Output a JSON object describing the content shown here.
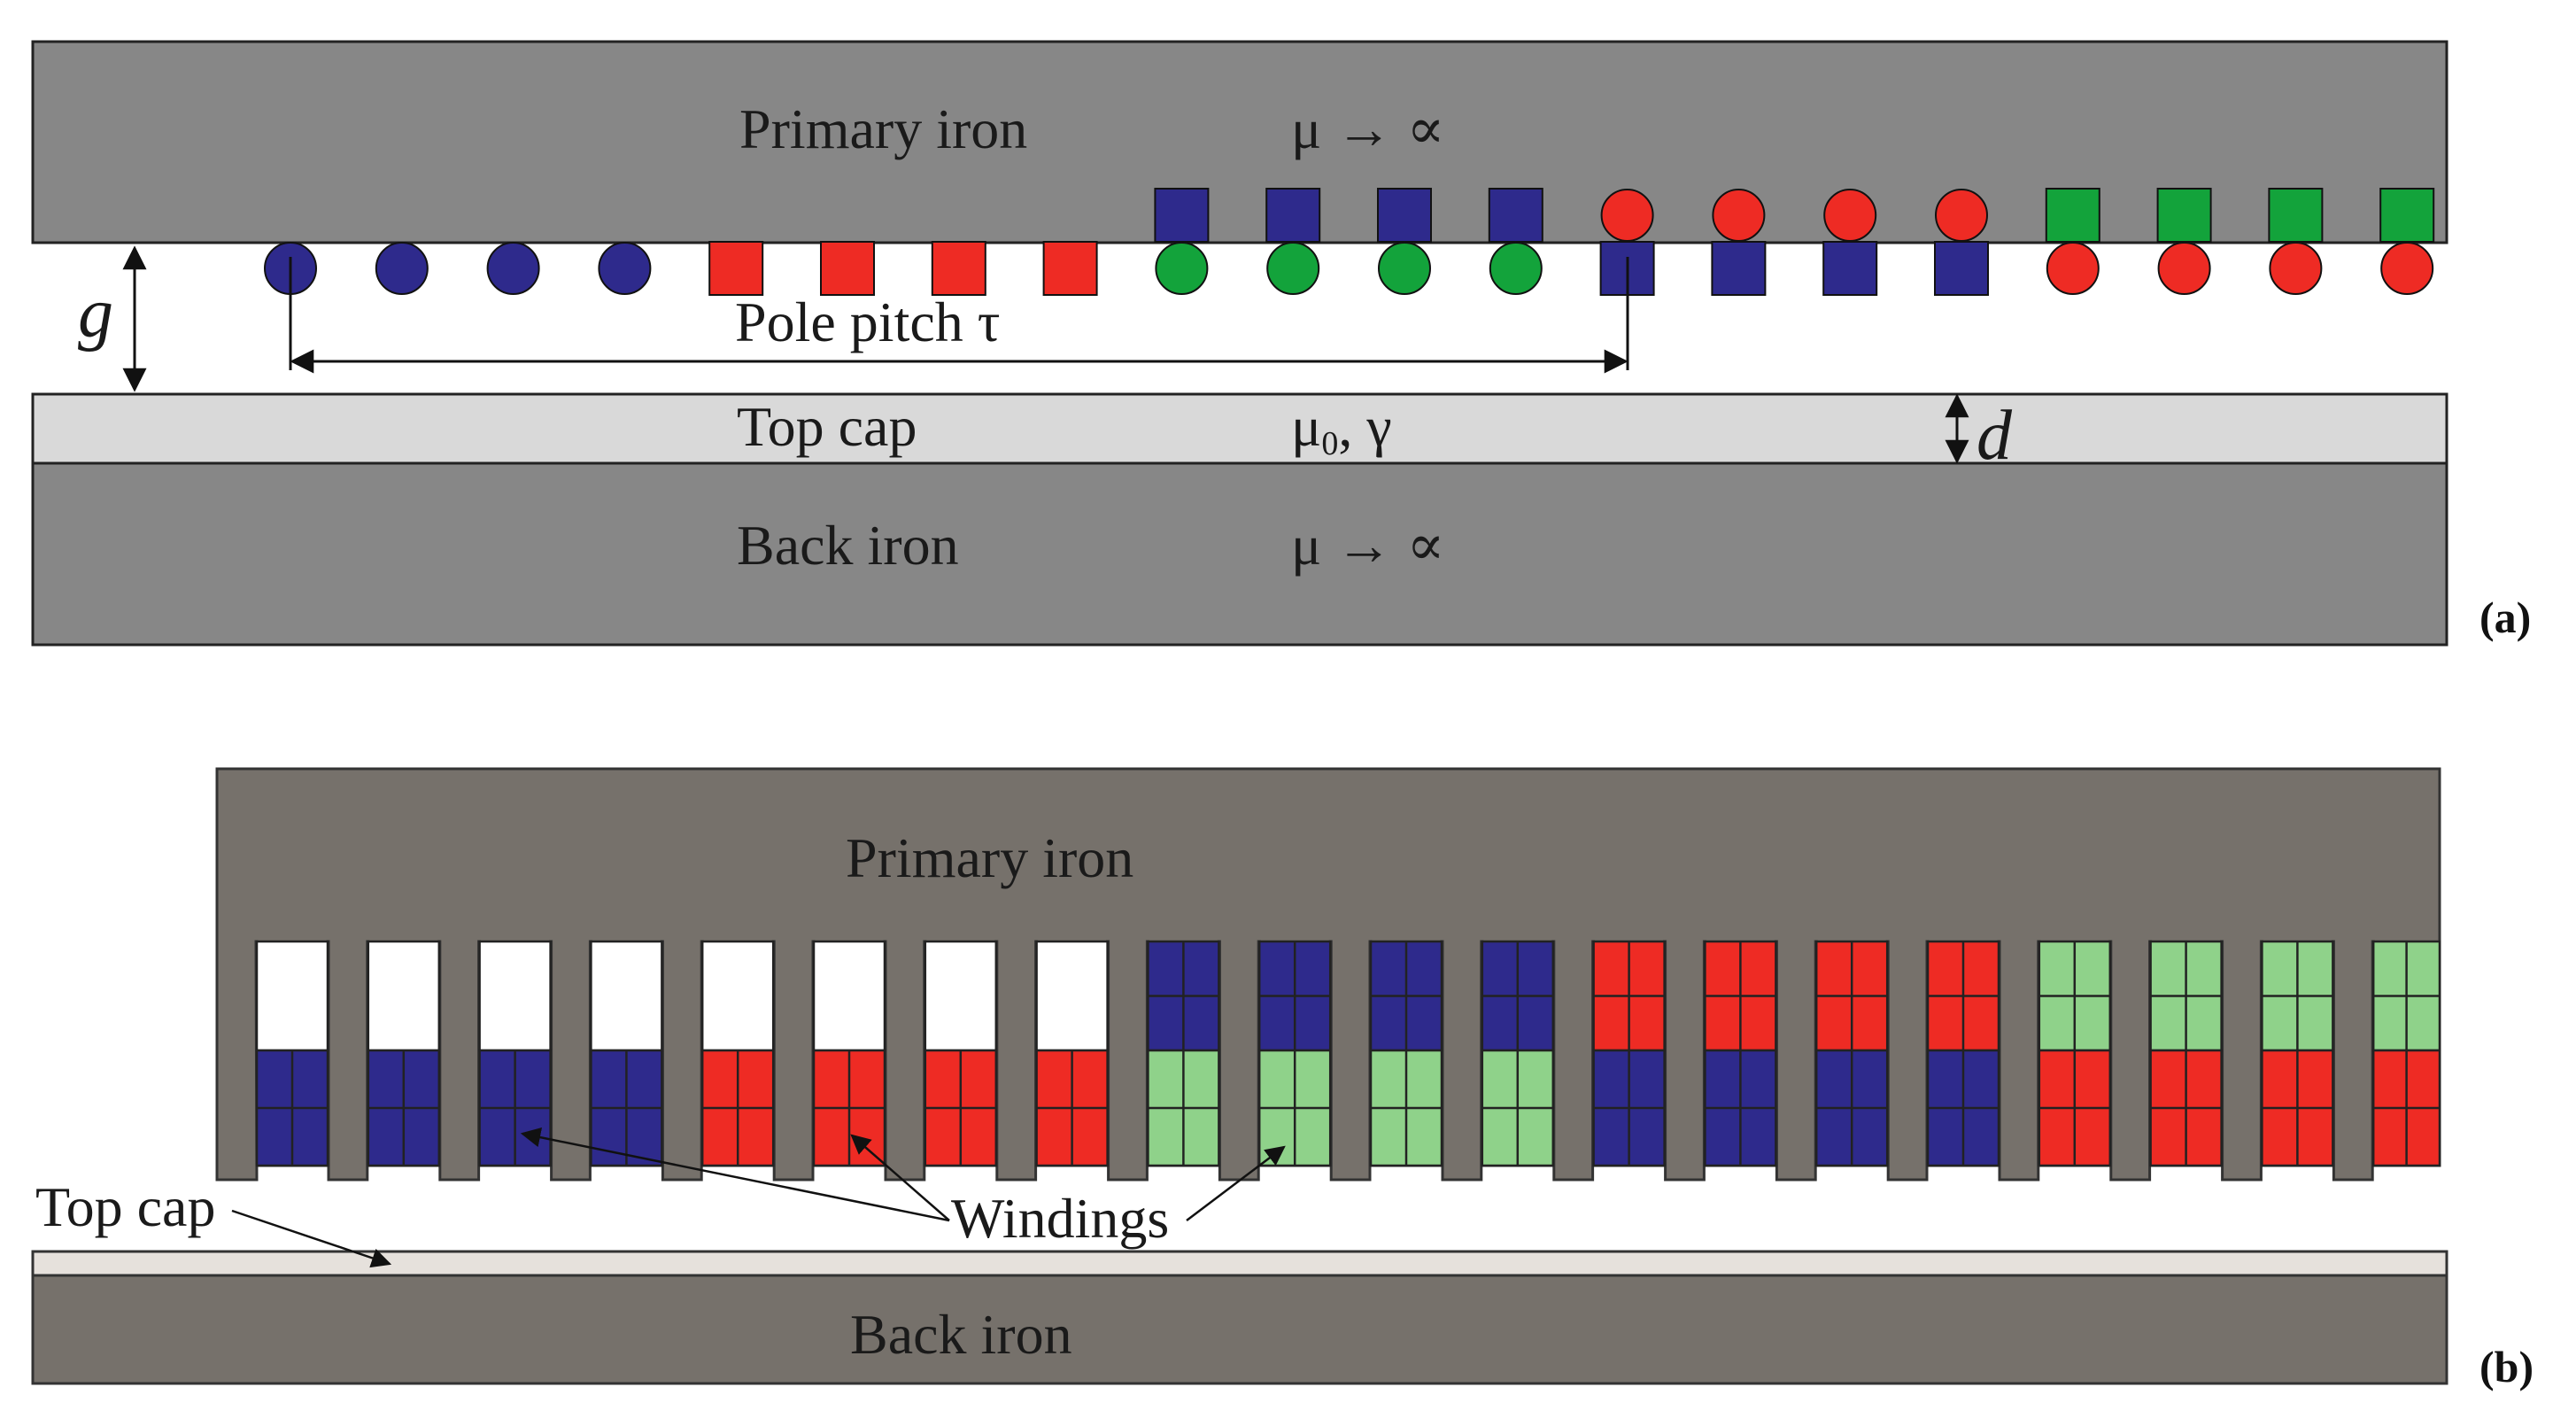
{
  "panel_a": {
    "label": "(a)",
    "primary_iron": {
      "name": "Primary iron",
      "prop": "μ → ∝"
    },
    "pole_pitch": "Pole pitch τ",
    "gap_symbol": "g",
    "top_cap": {
      "name": "Top cap",
      "prop_main": "μ",
      "prop_sub": "0",
      "prop_rest": ", γ"
    },
    "thickness_symbol": "d",
    "back_iron": {
      "name": "Back iron",
      "prop": "μ → ∝"
    },
    "conductor_pattern": {
      "upper_row": [
        "",
        "",
        "",
        "",
        "",
        "",
        "",
        "",
        "blue-square",
        "blue-square",
        "blue-square",
        "blue-square",
        "red-circle",
        "red-circle",
        "red-circle",
        "red-circle",
        "green-square",
        "green-square",
        "green-square",
        "green-square"
      ],
      "lower_row": [
        "blue-circle",
        "blue-circle",
        "blue-circle",
        "blue-circle",
        "red-square",
        "red-square",
        "red-square",
        "red-square",
        "green-circle",
        "green-circle",
        "green-circle",
        "green-circle",
        "blue-square",
        "blue-square",
        "blue-square",
        "blue-square",
        "red-circle",
        "red-circle",
        "red-circle",
        "red-circle"
      ]
    }
  },
  "panel_b": {
    "label": "(b)",
    "primary_iron": "Primary iron",
    "windings": "Windings",
    "top_cap": "Top cap",
    "back_iron": "Back iron",
    "slot_pattern": {
      "upper": [
        "empty",
        "empty",
        "empty",
        "empty",
        "empty",
        "empty",
        "empty",
        "empty",
        "blue",
        "blue",
        "blue",
        "blue",
        "red",
        "red",
        "red",
        "red",
        "green",
        "green",
        "green",
        "green"
      ],
      "lower": [
        "blue",
        "blue",
        "blue",
        "blue",
        "red",
        "red",
        "red",
        "red",
        "green",
        "green",
        "green",
        "green",
        "blue",
        "blue",
        "blue",
        "blue",
        "red",
        "red",
        "red",
        "red"
      ]
    }
  },
  "colors": {
    "iron_a": "#878787",
    "iron_b": "#76716b",
    "top_cap": "#d9d9d9",
    "blue": "#2e2a8c",
    "red": "#ee2b24",
    "green_a": "#13a33b",
    "green_b": "#8fd28a",
    "empty_slot": "#ffffff"
  }
}
